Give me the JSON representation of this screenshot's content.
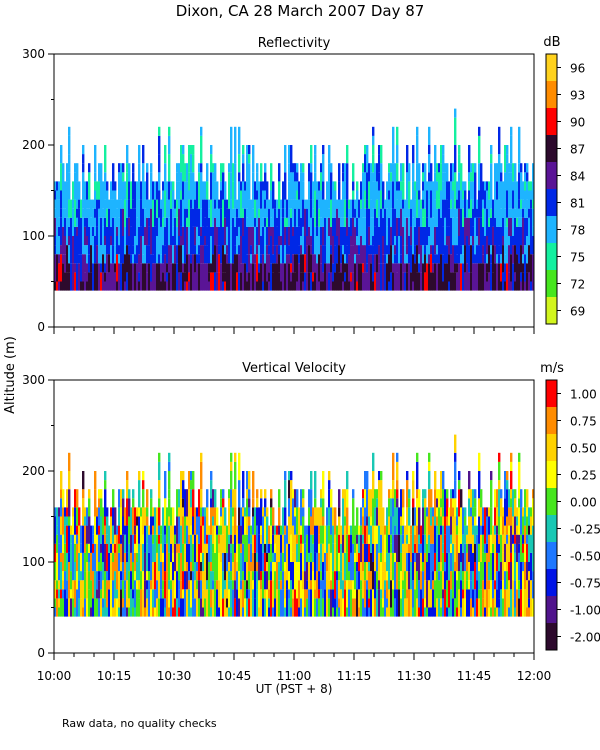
{
  "title": "Dixon, CA 28 March 2007  Day  87",
  "footer_note": "Raw data, no quality checks",
  "chart_data": [
    {
      "type": "heatmap",
      "title": "Reflectivity",
      "ylabel": "Altitude (m)",
      "xlabel": "UT  (PST + 8)",
      "ylim": [
        0,
        300
      ],
      "yticks": [
        0,
        100,
        200,
        300
      ],
      "xlim": [
        "10:00",
        "12:00"
      ],
      "xticks": [
        "10:00",
        "10:15",
        "10:30",
        "10:45",
        "11:00",
        "11:15",
        "11:30",
        "11:45",
        "12:00"
      ],
      "colorbar": {
        "unit": "dB",
        "labels": [
          "96",
          "93",
          "90",
          "87",
          "84",
          "81",
          "78",
          "75",
          "72",
          "69"
        ],
        "colors": [
          "#ffd21e",
          "#ff8c00",
          "#ff0000",
          "#2d0a2d",
          "#5a1496",
          "#0028e6",
          "#1eb4ff",
          "#14f0a0",
          "#46e61e",
          "#d2f51e"
        ]
      },
      "data_summary": {
        "echo_base_m": 40,
        "typical_echo_top_m": [
          140,
          200
        ],
        "max_echo_top_m": 240,
        "max_echo_top_time": "11:40",
        "low_layer_dB": [
          84,
          90
        ],
        "mid_layer_dB": [
          78,
          81
        ],
        "top_layer_dB": [
          75,
          78
        ]
      }
    },
    {
      "type": "heatmap",
      "title": "Vertical Velocity",
      "ylabel": "Altitude (m)",
      "xlabel": "UT  (PST + 8)",
      "ylim": [
        0,
        300
      ],
      "yticks": [
        0,
        100,
        200,
        300
      ],
      "xlim": [
        "10:00",
        "12:00"
      ],
      "xticks": [
        "10:00",
        "10:15",
        "10:30",
        "10:45",
        "11:00",
        "11:15",
        "11:30",
        "11:45",
        "12:00"
      ],
      "colorbar": {
        "unit": "m/s",
        "labels": [
          "1.00",
          "0.75",
          "0.50",
          "0.25",
          "0.00",
          "-0.25",
          "-0.50",
          "-0.75",
          "-1.00",
          "-2.00"
        ],
        "colors": [
          "#ff0000",
          "#ff8c00",
          "#ffd200",
          "#ffff00",
          "#46e61e",
          "#19c8b4",
          "#1e78ff",
          "#0014e6",
          "#50148c",
          "#2d0a2d"
        ]
      },
      "data_summary": {
        "echo_base_m": 40,
        "typical_echo_top_m": [
          140,
          200
        ],
        "max_echo_top_m": 240,
        "max_echo_top_time": "11:40",
        "velocity_range_m_s": [
          -2.0,
          1.0
        ]
      }
    }
  ]
}
